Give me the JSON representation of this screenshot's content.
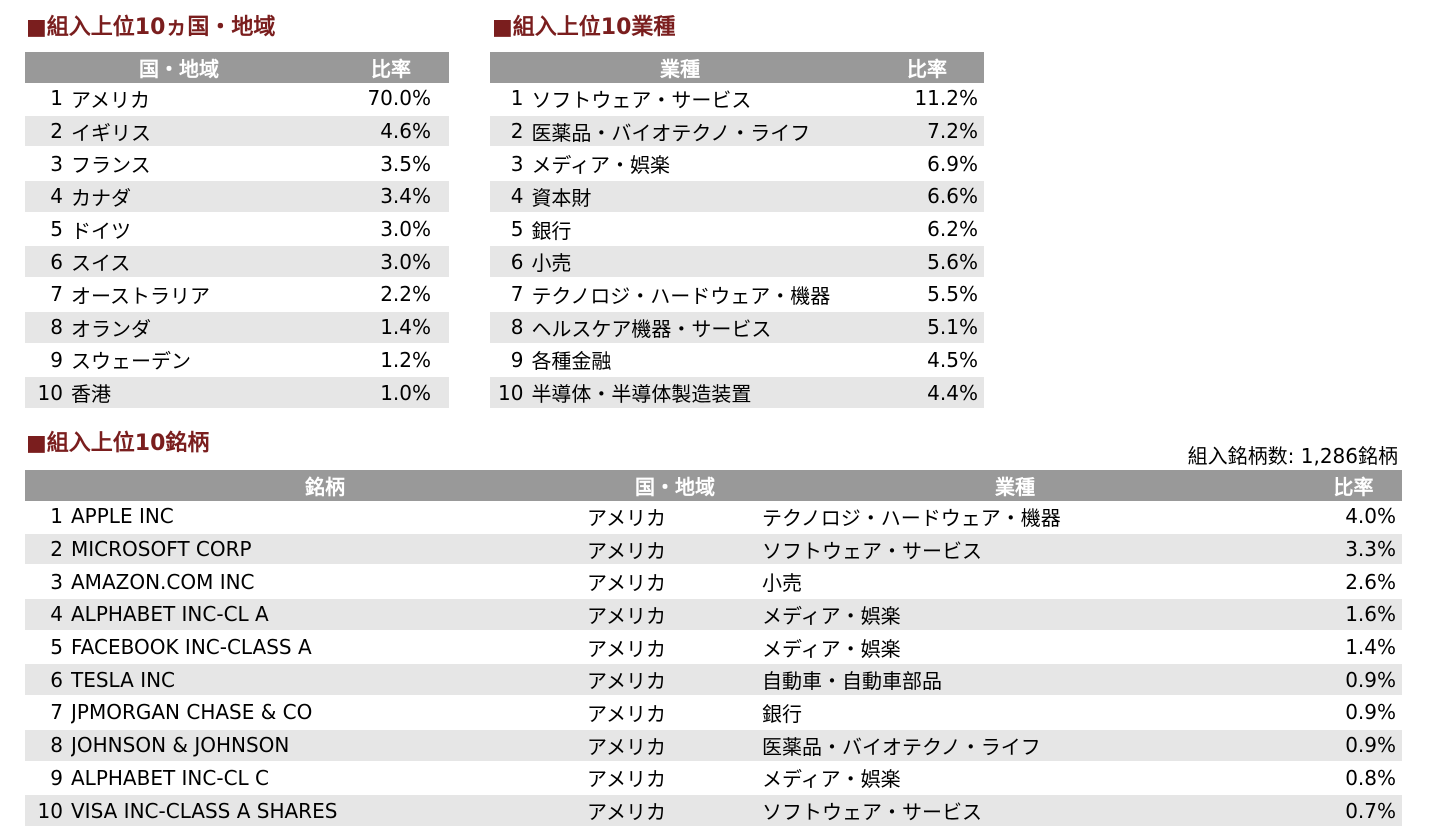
{
  "countries": {
    "title": "■組入上位10ヵ国・地域",
    "headers": [
      "国・地域",
      "比率"
    ],
    "rows": [
      {
        "rank": "1",
        "name": "アメリカ",
        "ratio": "70.0%"
      },
      {
        "rank": "2",
        "name": "イギリス",
        "ratio": "4.6%"
      },
      {
        "rank": "3",
        "name": "フランス",
        "ratio": "3.5%"
      },
      {
        "rank": "4",
        "name": "カナダ",
        "ratio": "3.4%"
      },
      {
        "rank": "5",
        "name": "ドイツ",
        "ratio": "3.0%"
      },
      {
        "rank": "6",
        "name": "スイス",
        "ratio": "3.0%"
      },
      {
        "rank": "7",
        "name": "オーストラリア",
        "ratio": "2.2%"
      },
      {
        "rank": "8",
        "name": "オランダ",
        "ratio": "1.4%"
      },
      {
        "rank": "9",
        "name": "スウェーデン",
        "ratio": "1.2%"
      },
      {
        "rank": "10",
        "name": "香港",
        "ratio": "1.0%"
      }
    ]
  },
  "industries": {
    "title": "■組入上位10業種",
    "headers": [
      "業種",
      "比率"
    ],
    "rows": [
      {
        "rank": "1",
        "name": "ソフトウェア・サービス",
        "ratio": "11.2%"
      },
      {
        "rank": "2",
        "name": "医薬品・バイオテクノ・ライフ",
        "ratio": "7.2%"
      },
      {
        "rank": "3",
        "name": "メディア・娯楽",
        "ratio": "6.9%"
      },
      {
        "rank": "4",
        "name": "資本財",
        "ratio": "6.6%"
      },
      {
        "rank": "5",
        "name": "銀行",
        "ratio": "6.2%"
      },
      {
        "rank": "6",
        "name": "小売",
        "ratio": "5.6%"
      },
      {
        "rank": "7",
        "name": "テクノロジ・ハードウェア・機器",
        "ratio": "5.5%"
      },
      {
        "rank": "8",
        "name": "ヘルスケア機器・サービス",
        "ratio": "5.1%"
      },
      {
        "rank": "9",
        "name": "各種金融",
        "ratio": "4.5%"
      },
      {
        "rank": "10",
        "name": "半導体・半導体製造装置",
        "ratio": "4.4%"
      }
    ]
  },
  "holdings": {
    "title": "■組入上位10銘柄",
    "count_label": "組入銘柄数: 1,286銘柄",
    "headers": [
      "銘柄",
      "国・地域",
      "業種",
      "比率"
    ],
    "rows": [
      {
        "rank": "1",
        "name": "APPLE INC",
        "country": "アメリカ",
        "industry": "テクノロジ・ハードウェア・機器",
        "ratio": "4.0%"
      },
      {
        "rank": "2",
        "name": "MICROSOFT CORP",
        "country": "アメリカ",
        "industry": "ソフトウェア・サービス",
        "ratio": "3.3%"
      },
      {
        "rank": "3",
        "name": "AMAZON.COM INC",
        "country": "アメリカ",
        "industry": "小売",
        "ratio": "2.6%"
      },
      {
        "rank": "4",
        "name": "ALPHABET INC-CL A",
        "country": "アメリカ",
        "industry": "メディア・娯楽",
        "ratio": "1.6%"
      },
      {
        "rank": "5",
        "name": "FACEBOOK INC-CLASS A",
        "country": "アメリカ",
        "industry": "メディア・娯楽",
        "ratio": "1.4%"
      },
      {
        "rank": "6",
        "name": "TESLA INC",
        "country": "アメリカ",
        "industry": "自動車・自動車部品",
        "ratio": "0.9%"
      },
      {
        "rank": "7",
        "name": "JPMORGAN CHASE & CO",
        "country": "アメリカ",
        "industry": "銀行",
        "ratio": "0.9%"
      },
      {
        "rank": "8",
        "name": "JOHNSON & JOHNSON",
        "country": "アメリカ",
        "industry": "医薬品・バイオテクノ・ライフ",
        "ratio": "0.9%"
      },
      {
        "rank": "9",
        "name": "ALPHABET INC-CL C",
        "country": "アメリカ",
        "industry": "メディア・娯楽",
        "ratio": "0.8%"
      },
      {
        "rank": "10",
        "name": "VISA INC-CLASS A SHARES",
        "country": "アメリカ",
        "industry": "ソフトウェア・サービス",
        "ratio": "0.7%"
      }
    ]
  }
}
